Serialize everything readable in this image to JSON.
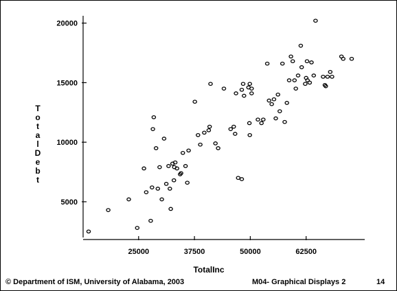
{
  "chart_data": {
    "type": "scatter",
    "title": "",
    "xlabel": "TotalInc",
    "ylabel": "TotalDebt",
    "xlim": [
      13500,
      75000
    ],
    "ylim": [
      2000,
      20500
    ],
    "x_ticks": [
      25000,
      37500,
      50000,
      62500
    ],
    "y_ticks": [
      5000,
      10000,
      15000,
      20000
    ],
    "grid": false,
    "legend": "none",
    "series": [
      {
        "x": [
          13800,
          18200,
          22800,
          24700,
          26200,
          26700,
          27700,
          28000,
          28200,
          28400,
          28900,
          29300,
          29700,
          30200,
          30700,
          31200,
          31700,
          32000,
          32200,
          32600,
          33000,
          33200,
          32900,
          33600,
          34300,
          34500,
          34900,
          35500,
          35900,
          36200,
          37600,
          38300,
          38800,
          39700,
          40700,
          40900,
          41100,
          42200,
          42800,
          44100,
          45600,
          46300,
          46600,
          46800,
          47300,
          48100,
          48100,
          48400,
          48600,
          49600,
          49800,
          49900,
          49900,
          50300,
          50300,
          51700,
          52500,
          52900,
          53800,
          54200,
          54800,
          55300,
          55700,
          56200,
          56600,
          57200,
          57700,
          58200,
          58700,
          59100,
          59500,
          59900,
          60200,
          60700,
          61300,
          61500,
          62300,
          62500,
          62700,
          62800,
          63300,
          63700,
          64200,
          64600,
          66300,
          66700,
          66900,
          67300,
          67900,
          68300,
          70400,
          70800,
          72700
        ],
        "y": [
          2500,
          4300,
          5200,
          2800,
          7800,
          5800,
          3400,
          6200,
          11100,
          12100,
          9500,
          6100,
          7900,
          5200,
          10300,
          6500,
          8000,
          6100,
          4400,
          8200,
          7900,
          8300,
          6800,
          7800,
          7300,
          7400,
          9100,
          8000,
          6600,
          9300,
          13400,
          10600,
          9800,
          10800,
          11000,
          11300,
          14900,
          9900,
          9500,
          14500,
          11100,
          11300,
          10700,
          14100,
          7000,
          6900,
          14400,
          14900,
          13900,
          14600,
          11600,
          14900,
          10600,
          14500,
          14100,
          11900,
          11600,
          11900,
          16600,
          13500,
          13200,
          13600,
          12000,
          14000,
          12600,
          16600,
          11700,
          13300,
          15200,
          17200,
          16800,
          15200,
          14500,
          15600,
          18100,
          16300,
          14900,
          15400,
          16800,
          15200,
          15000,
          16700,
          15600,
          20200,
          15500,
          14800,
          14700,
          15500,
          15900,
          15500,
          17200,
          17000,
          17000
        ]
      }
    ]
  },
  "footer": {
    "copyright": "© Department of ISM, University of Alabama, 2003",
    "course": "M04- Graphical Displays 2",
    "page": "14"
  }
}
